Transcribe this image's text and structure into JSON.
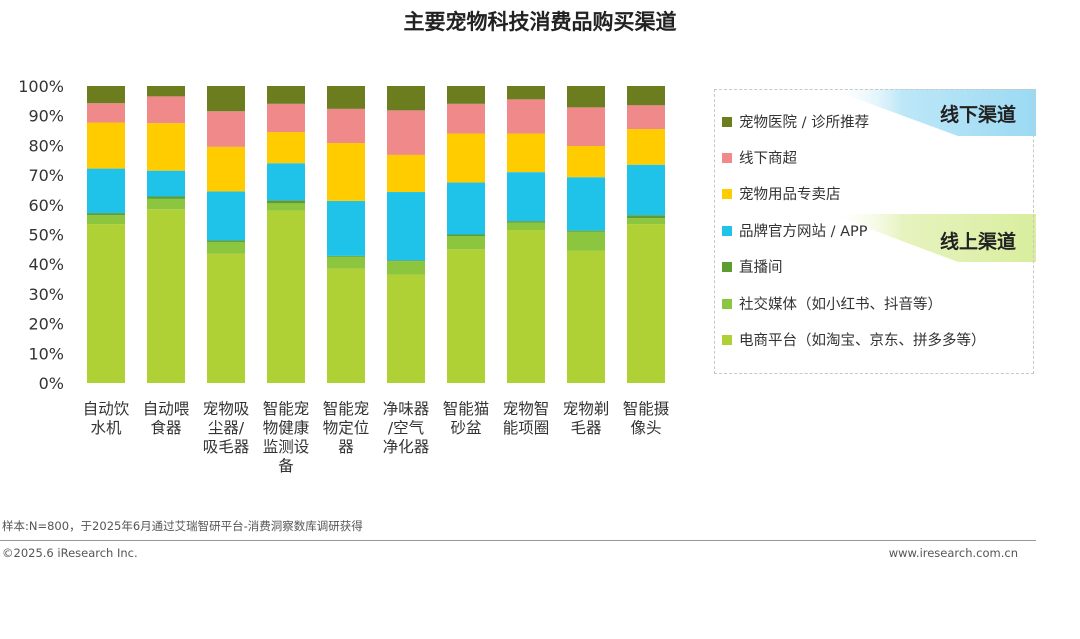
{
  "chart_data": {
    "type": "bar",
    "stacked": true,
    "percent": true,
    "title": "主要宠物科技消费品购买渠道",
    "ylim": [
      0,
      100
    ],
    "yticks": [
      "0%",
      "10%",
      "20%",
      "30%",
      "40%",
      "50%",
      "60%",
      "70%",
      "80%",
      "90%",
      "100%"
    ],
    "categories": [
      "自动饮水机",
      "自动喂食器",
      "宠物吸尘器/吸毛器",
      "智能宠物健康监测设备",
      "智能宠物定位器",
      "净味器/空气净化器",
      "智能猫砂盆",
      "宠物智能项圈",
      "宠物剃毛器",
      "智能摄像头"
    ],
    "category_lines": [
      [
        "自动饮",
        "水机"
      ],
      [
        "自动喂",
        "食器"
      ],
      [
        "宠物吸",
        "尘器/",
        "吸毛器"
      ],
      [
        "智能宠",
        "物健康",
        "监测设",
        "备"
      ],
      [
        "智能宠",
        "物定位",
        "器"
      ],
      [
        "净味器",
        "/空气",
        "净化器"
      ],
      [
        "智能猫",
        "砂盆"
      ],
      [
        "宠物智",
        "能项圈"
      ],
      [
        "宠物剃",
        "毛器"
      ],
      [
        "智能摄",
        "像头"
      ]
    ],
    "series": [
      {
        "name": "电商平台（如淘宝、京东、拼多多等）",
        "color": "#b0d136",
        "values": [
          53.5,
          58.5,
          43.5,
          58.0,
          38.5,
          36.5,
          45.0,
          51.5,
          44.5,
          53.5
        ]
      },
      {
        "name": "社交媒体（如小红书、抖音等）",
        "color": "#8cc63f",
        "values": [
          3.0,
          3.5,
          4.0,
          2.5,
          4.0,
          4.5,
          4.5,
          2.5,
          6.5,
          2.0
        ]
      },
      {
        "name": "直播间",
        "color": "#5c9c32",
        "values": [
          0.7,
          0.8,
          0.5,
          1.0,
          0.3,
          0.3,
          0.5,
          0.5,
          0.3,
          1.0
        ]
      },
      {
        "name": "品牌官方网站 / APP",
        "color": "#1fc3ea",
        "values": [
          15.0,
          8.7,
          16.5,
          12.5,
          18.5,
          23.0,
          17.5,
          16.5,
          18.0,
          17.0
        ]
      },
      {
        "name": "宠物用品专卖店",
        "color": "#ffcc00",
        "values": [
          15.5,
          16.0,
          15.0,
          10.5,
          19.5,
          12.5,
          16.5,
          13.0,
          10.5,
          12.0
        ]
      },
      {
        "name": "线下商超",
        "color": "#f08a8a",
        "values": [
          6.5,
          9.0,
          12.0,
          9.5,
          11.5,
          15.0,
          10.0,
          11.5,
          13.0,
          8.0
        ]
      },
      {
        "name": "宠物医院 / 诊所推荐",
        "color": "#6b7d1f",
        "values": [
          5.8,
          3.5,
          8.5,
          6.0,
          7.7,
          8.2,
          6.0,
          4.5,
          7.2,
          6.5
        ]
      }
    ],
    "legend": {
      "position": "right",
      "groups": [
        {
          "label": "线下渠道",
          "items": [
            "宠物医院 / 诊所推荐",
            "线下商超",
            "宠物用品专卖店"
          ]
        },
        {
          "label": "线上渠道",
          "items": [
            "品牌官方网站 / APP",
            "直播间",
            "社交媒体（如小红书、抖音等）",
            "电商平台（如淘宝、京东、拼多多等）"
          ]
        }
      ]
    },
    "grid": false
  },
  "footer": {
    "source": "样本:N=800，于2025年6月通过艾瑞智研平台-消费洞察数库调研获得",
    "copyright": "©2025.6 iResearch Inc.",
    "website": "www.iresearch.com.cn"
  }
}
